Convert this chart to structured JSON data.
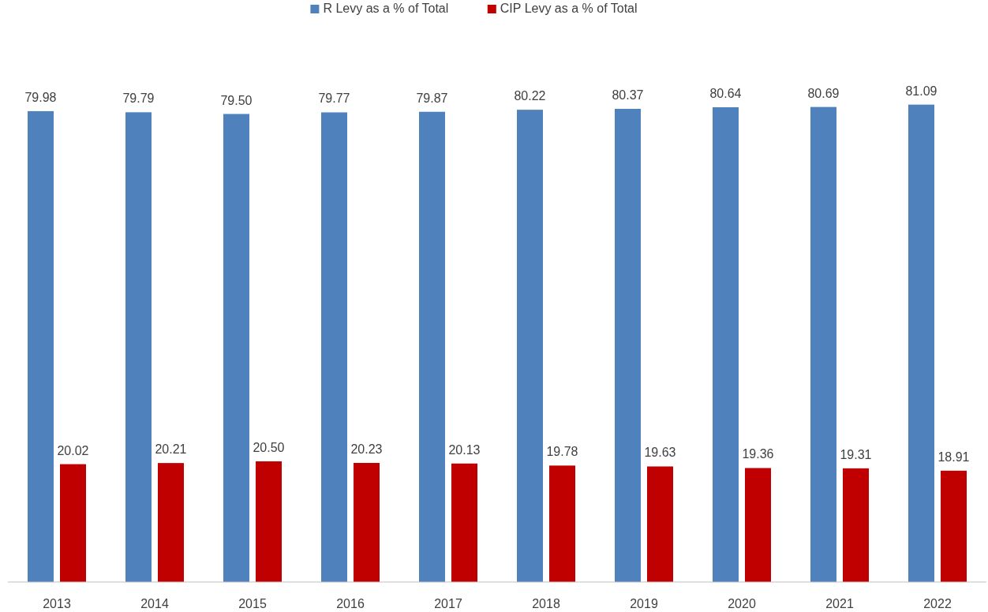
{
  "chart_data": {
    "type": "bar",
    "categories": [
      "2013",
      "2014",
      "2015",
      "2016",
      "2017",
      "2018",
      "2019",
      "2020",
      "2021",
      "2022"
    ],
    "series": [
      {
        "name": "R Levy as a % of Total",
        "color": "#4f81bd",
        "values": [
          79.98,
          79.79,
          79.5,
          79.77,
          79.87,
          80.22,
          80.37,
          80.64,
          80.69,
          81.09
        ],
        "value_labels": [
          "79.98",
          "79.79",
          "79.50",
          "79.77",
          "79.87",
          "80.22",
          "80.37",
          "80.64",
          "80.69",
          "81.09"
        ]
      },
      {
        "name": "CIP Levy as a % of Total",
        "color": "#c00000",
        "values": [
          20.02,
          20.21,
          20.5,
          20.23,
          20.13,
          19.78,
          19.63,
          19.36,
          19.31,
          18.91
        ],
        "value_labels": [
          "20.02",
          "20.21",
          "20.50",
          "20.23",
          "20.13",
          "19.78",
          "19.63",
          "19.36",
          "19.31",
          "18.91"
        ]
      }
    ],
    "legend": "top"
  }
}
